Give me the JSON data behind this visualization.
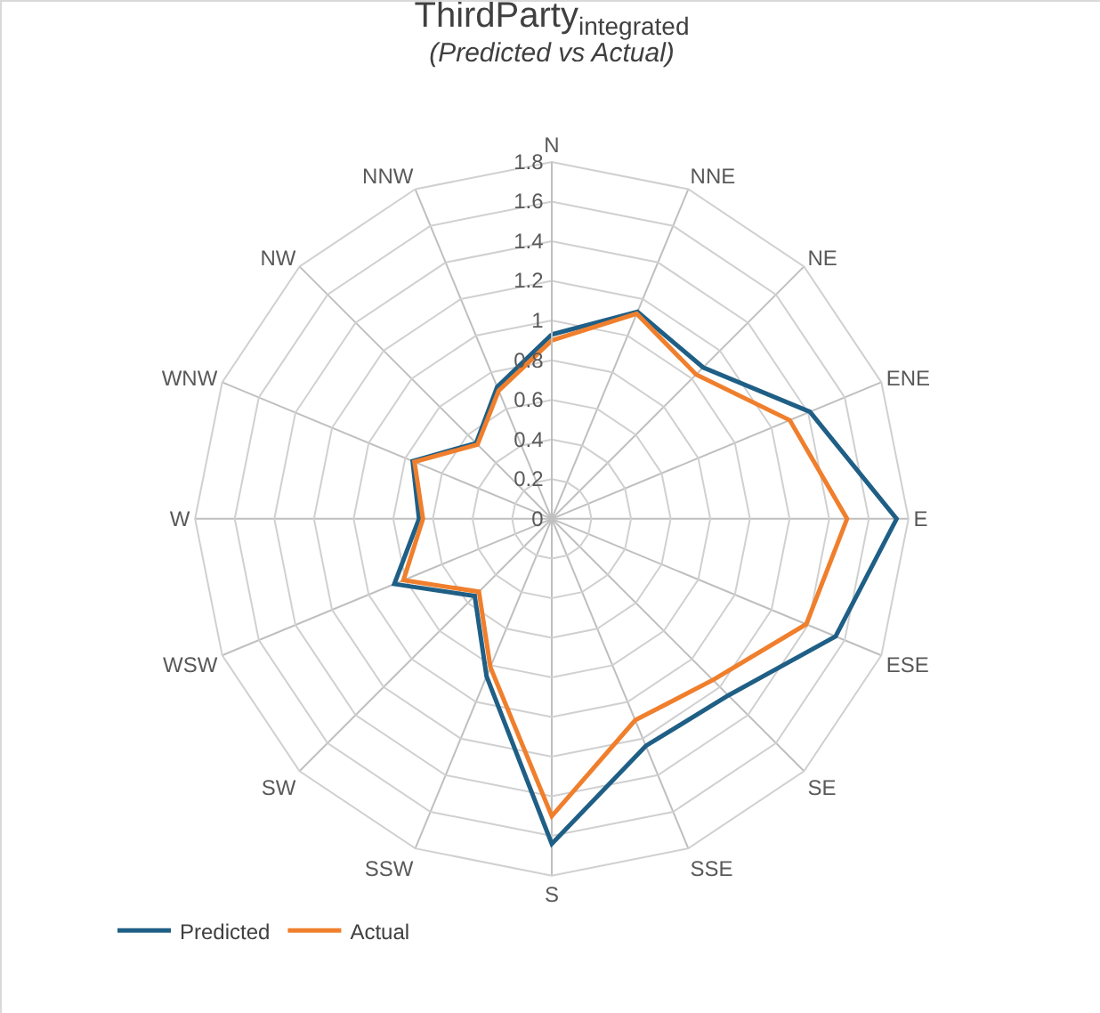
{
  "chart_data": {
    "type": "radar",
    "title": "ThirdParty$_{integrated}$",
    "subtitle": "(Predicted vs Actual)",
    "categories": [
      "N",
      "NNE",
      "NE",
      "ENE",
      "E",
      "ESE",
      "SE",
      "SSE",
      "S",
      "SSW",
      "SW",
      "WSW",
      "W",
      "WNW",
      "NW",
      "NNW"
    ],
    "series": [
      {
        "name": "Predicted",
        "color": "#1f5f86",
        "values": [
          0.93,
          1.13,
          1.08,
          1.41,
          1.74,
          1.55,
          1.26,
          1.24,
          1.64,
          0.86,
          0.55,
          0.86,
          0.67,
          0.76,
          0.54,
          0.72
        ]
      },
      {
        "name": "Actual",
        "color": "#f07f2d",
        "values": [
          0.9,
          1.12,
          1.03,
          1.3,
          1.49,
          1.39,
          1.15,
          1.1,
          1.5,
          0.81,
          0.52,
          0.81,
          0.65,
          0.75,
          0.53,
          0.7
        ]
      }
    ],
    "ylim": [
      0,
      1.8
    ],
    "yticks": [
      0,
      0.2,
      0.4,
      0.6,
      0.8,
      1,
      1.2,
      1.4,
      1.6,
      1.8
    ],
    "grid": true,
    "legend": "bottom left",
    "marker": "none",
    "line_style": "solid"
  }
}
